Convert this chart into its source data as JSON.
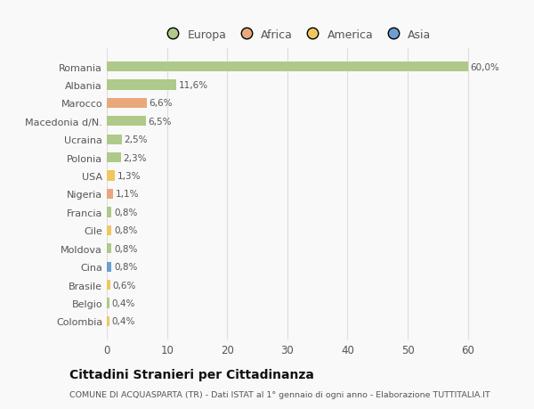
{
  "categories": [
    "Romania",
    "Albania",
    "Marocco",
    "Macedonia d/N.",
    "Ucraina",
    "Polonia",
    "USA",
    "Nigeria",
    "Francia",
    "Cile",
    "Moldova",
    "Cina",
    "Brasile",
    "Belgio",
    "Colombia"
  ],
  "values": [
    60.0,
    11.6,
    6.6,
    6.5,
    2.5,
    2.3,
    1.3,
    1.1,
    0.8,
    0.8,
    0.8,
    0.8,
    0.6,
    0.4,
    0.4
  ],
  "labels": [
    "60,0%",
    "11,6%",
    "6,6%",
    "6,5%",
    "2,5%",
    "2,3%",
    "1,3%",
    "1,1%",
    "0,8%",
    "0,8%",
    "0,8%",
    "0,8%",
    "0,6%",
    "0,4%",
    "0,4%"
  ],
  "bar_colors": [
    "#aec98a",
    "#aec98a",
    "#e8a87c",
    "#aec98a",
    "#aec98a",
    "#aec98a",
    "#f0c75e",
    "#e8a87c",
    "#aec98a",
    "#f0c75e",
    "#aec98a",
    "#6b9fd4",
    "#f0c75e",
    "#aec98a",
    "#f0c75e"
  ],
  "legend_labels": [
    "Europa",
    "Africa",
    "America",
    "Asia"
  ],
  "legend_colors": [
    "#aec98a",
    "#e8a87c",
    "#f0c75e",
    "#6b9fd4"
  ],
  "title": "Cittadini Stranieri per Cittadinanza",
  "subtitle": "COMUNE DI ACQUASPARTA (TR) - Dati ISTAT al 1° gennaio di ogni anno - Elaborazione TUTTITALIA.IT",
  "xlim": [
    0,
    63
  ],
  "xticks": [
    0,
    10,
    20,
    30,
    40,
    50,
    60
  ],
  "background_color": "#f9f9f9",
  "grid_color": "#dddddd",
  "bar_height": 0.55
}
